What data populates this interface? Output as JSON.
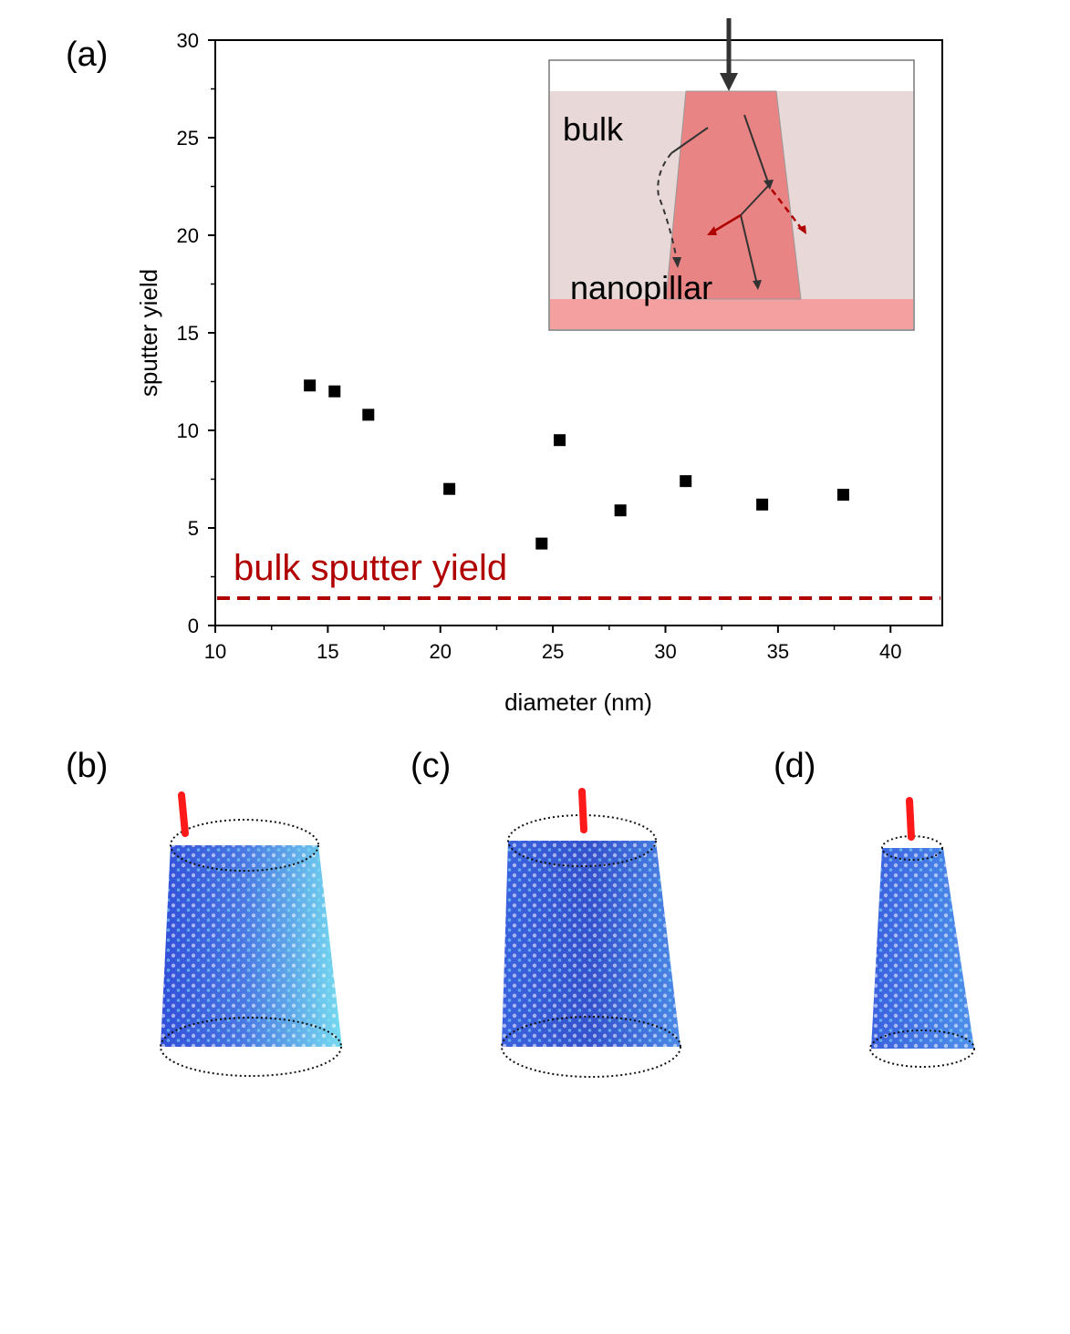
{
  "panels": {
    "a": "(a)",
    "b": "(b)",
    "c": "(c)",
    "d": "(d)"
  },
  "chart_data": {
    "type": "scatter",
    "title": "",
    "xlabel": "diameter (nm)",
    "ylabel": "sputter yield",
    "xlim": [
      10,
      42.3
    ],
    "ylim": [
      0,
      30
    ],
    "xticks": [
      10,
      15,
      20,
      25,
      30,
      35,
      40
    ],
    "yticks": [
      0,
      5,
      10,
      15,
      20,
      25,
      30
    ],
    "grid": false,
    "series": [
      {
        "name": "nanopillar",
        "marker": "square",
        "color": "#000000",
        "x": [
          14.2,
          15.3,
          16.8,
          20.4,
          24.5,
          25.3,
          28.0,
          30.9,
          34.3,
          37.9
        ],
        "y": [
          12.3,
          12.0,
          10.8,
          7.0,
          4.2,
          9.5,
          5.9,
          7.4,
          6.2,
          6.7
        ]
      }
    ],
    "reference_line": {
      "label": "bulk sputter yield",
      "y": 1.4,
      "style": "dashed",
      "color": "#b00000"
    },
    "inset": {
      "bulk_label": "bulk",
      "nanopillar_label": "nanopillar"
    }
  },
  "colors": {
    "bulk_region": "#e8d8d8",
    "pillar": "#e88484",
    "substrate": "#f4a0a0",
    "ion": "#ff1a1a",
    "atom_dark": "#1f3fd6",
    "atom_light": "#5fd6f0"
  }
}
